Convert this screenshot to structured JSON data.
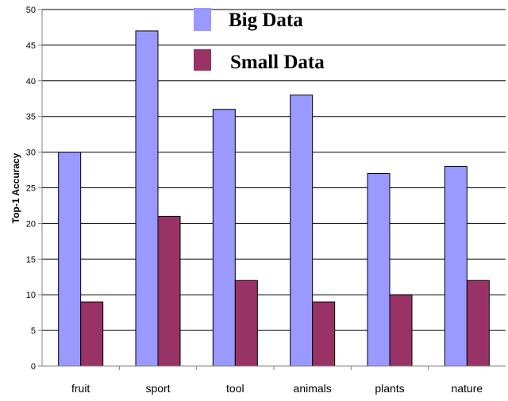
{
  "chart_data": {
    "type": "bar",
    "categories": [
      "fruit",
      "sport",
      "tool",
      "animals",
      "plants",
      "nature"
    ],
    "series": [
      {
        "name": "Big Data",
        "values": [
          30,
          47,
          36,
          38,
          27,
          28
        ]
      },
      {
        "name": "Small Data",
        "values": [
          9,
          21,
          12,
          9,
          10,
          12
        ]
      }
    ],
    "ylabel": "Top-1 Accuracy",
    "xlabel": "",
    "ylim": [
      0,
      50
    ],
    "yticks": [
      0,
      5,
      10,
      15,
      20,
      25,
      30,
      35,
      40,
      45,
      50
    ],
    "grid": true,
    "legend_position": "top",
    "colors": {
      "big": "#9999ff",
      "small": "#993366",
      "grid": "#000000",
      "axis": "#808080"
    }
  }
}
